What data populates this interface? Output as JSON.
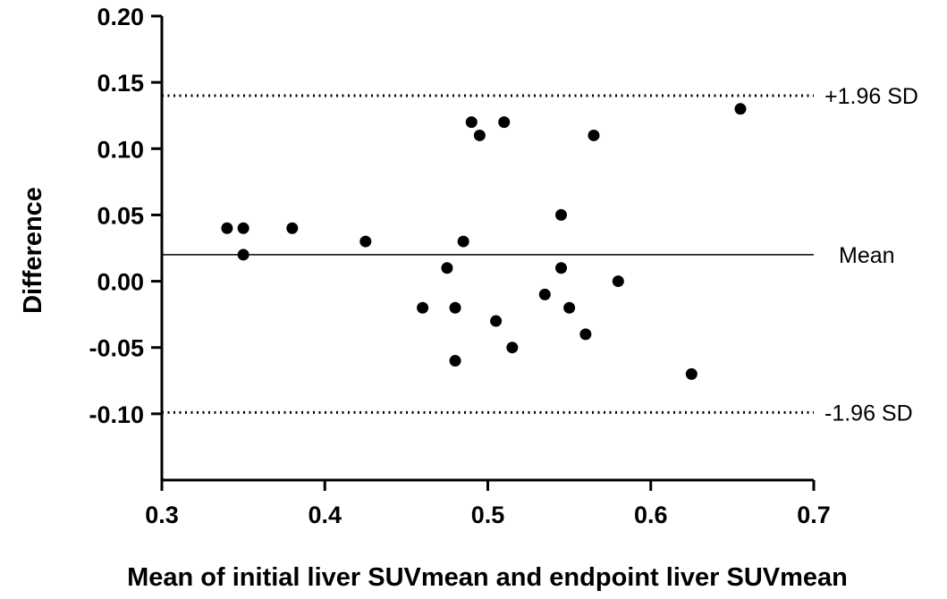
{
  "chart_data": {
    "type": "scatter",
    "title": "",
    "xlabel": "Mean of initial liver SUVmean and endpoint liver SUVmean",
    "ylabel": "Difference",
    "xlim": [
      0.3,
      0.7
    ],
    "ylim": [
      -0.15,
      0.2
    ],
    "x_ticks": [
      {
        "value": 0.3,
        "label": "0.3"
      },
      {
        "value": 0.4,
        "label": "0.4"
      },
      {
        "value": 0.5,
        "label": "0.5"
      },
      {
        "value": 0.6,
        "label": "0.6"
      },
      {
        "value": 0.7,
        "label": "0.7"
      }
    ],
    "y_ticks": [
      {
        "value": 0.2,
        "label": "0.20"
      },
      {
        "value": 0.15,
        "label": "0.15"
      },
      {
        "value": 0.1,
        "label": "0.10"
      },
      {
        "value": 0.05,
        "label": "0.05"
      },
      {
        "value": 0.0,
        "label": "0.00"
      },
      {
        "value": -0.05,
        "label": "-0.05"
      },
      {
        "value": -0.1,
        "label": "-0.10"
      }
    ],
    "grid": false,
    "points": [
      {
        "x": 0.34,
        "y": 0.04
      },
      {
        "x": 0.35,
        "y": 0.04
      },
      {
        "x": 0.35,
        "y": 0.02
      },
      {
        "x": 0.38,
        "y": 0.04
      },
      {
        "x": 0.425,
        "y": 0.03
      },
      {
        "x": 0.46,
        "y": -0.02
      },
      {
        "x": 0.475,
        "y": 0.01
      },
      {
        "x": 0.48,
        "y": -0.02
      },
      {
        "x": 0.48,
        "y": -0.06
      },
      {
        "x": 0.485,
        "y": 0.03
      },
      {
        "x": 0.49,
        "y": 0.12
      },
      {
        "x": 0.495,
        "y": 0.11
      },
      {
        "x": 0.505,
        "y": -0.03
      },
      {
        "x": 0.51,
        "y": 0.12
      },
      {
        "x": 0.515,
        "y": -0.05
      },
      {
        "x": 0.535,
        "y": -0.01
      },
      {
        "x": 0.545,
        "y": 0.05
      },
      {
        "x": 0.545,
        "y": 0.01
      },
      {
        "x": 0.55,
        "y": -0.02
      },
      {
        "x": 0.56,
        "y": -0.04
      },
      {
        "x": 0.565,
        "y": 0.11
      },
      {
        "x": 0.58,
        "y": 0.0
      },
      {
        "x": 0.625,
        "y": -0.07
      },
      {
        "x": 0.655,
        "y": 0.13
      }
    ],
    "reference_lines": [
      {
        "name": "upper-loa",
        "label": "+1.96 SD",
        "y": 0.14,
        "style": "dotted"
      },
      {
        "name": "mean",
        "label": "Mean",
        "y": 0.02,
        "style": "solid"
      },
      {
        "name": "lower-loa",
        "label": "-1.96 SD",
        "y": -0.099,
        "style": "dotted"
      }
    ],
    "colors": {
      "marker": "#000000",
      "lines": "#000000"
    }
  }
}
